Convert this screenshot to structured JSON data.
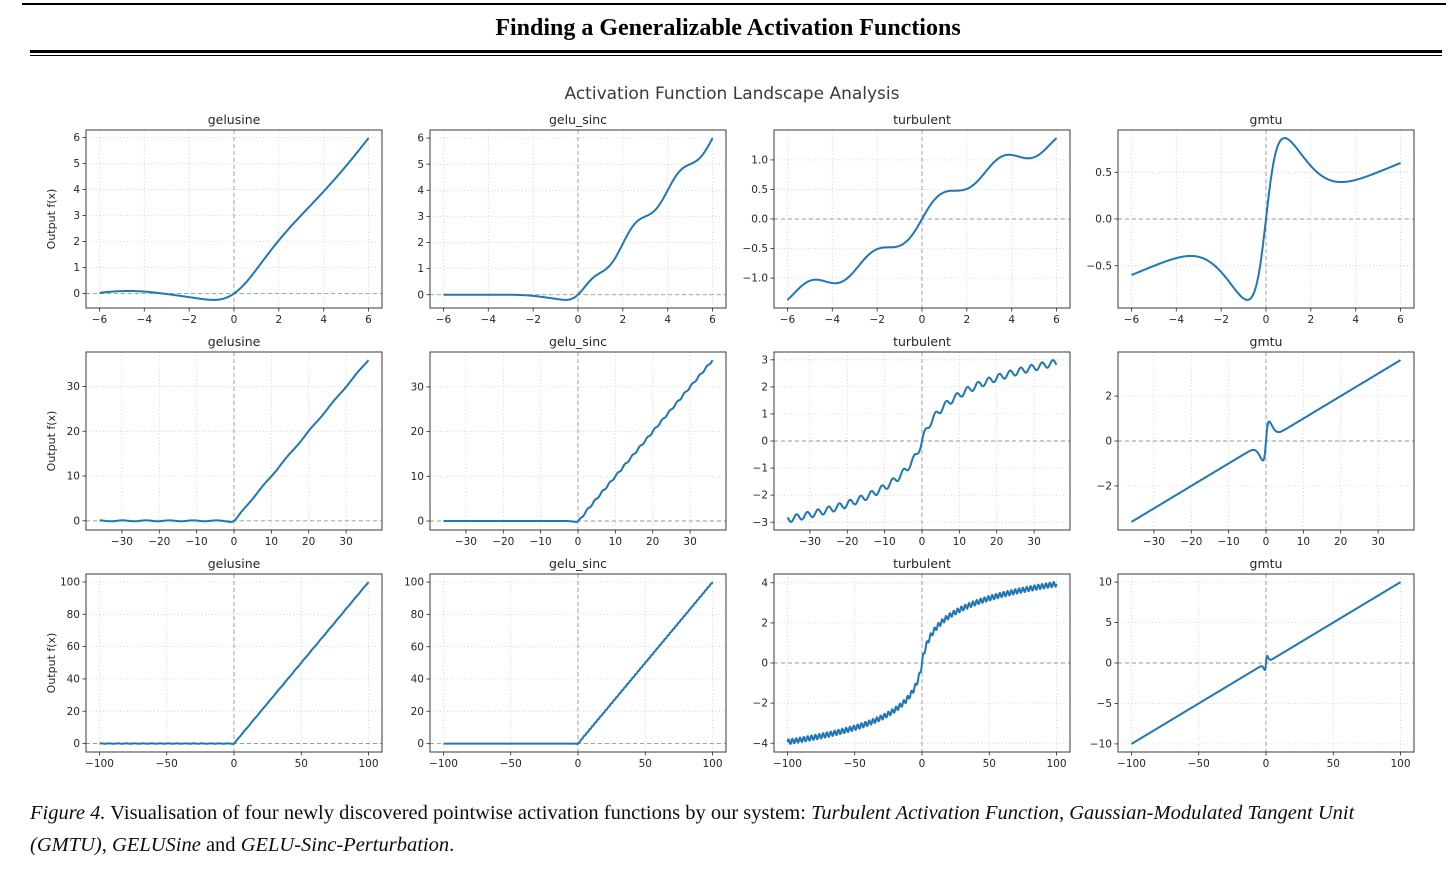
{
  "page": {
    "header_title": "Finding a Generalizable Activation Functions",
    "caption_segments": [
      {
        "text": "Figure 4.",
        "italic": true
      },
      {
        "text": " Visualisation of four newly discovered pointwise activation functions by our system: ",
        "italic": false
      },
      {
        "text": "Turbulent Activation Function",
        "italic": true
      },
      {
        "text": ", ",
        "italic": false
      },
      {
        "text": "Gaussian-Modulated Tangent Unit (GMTU)",
        "italic": true
      },
      {
        "text": ", ",
        "italic": false
      },
      {
        "text": "GELUSine",
        "italic": true
      },
      {
        "text": " and ",
        "italic": false
      },
      {
        "text": "GELU-Sinc-Perturbation",
        "italic": true
      },
      {
        "text": ".",
        "italic": false
      }
    ]
  },
  "chart_data": {
    "type": "line",
    "suptitle": "Activation Function Landscape Analysis",
    "ylabel": "Output f(x)",
    "line_color": "#1f77b4",
    "grid": "dotted",
    "zero_lines": "dashed",
    "legend": "none",
    "columns": [
      "gelusine",
      "gelu_sinc",
      "turbulent",
      "gmtu"
    ],
    "functions": {
      "gelusine": "gelu(x)+0.1*sin(x)",
      "gelu_sinc": "gelu(x)+0.2*sin(3.1416*x)*phi(1.5*x)",
      "turbulent": "sign(x)*1.06*log(1+0.4*abs(x))+0.12*sin(2.2*x)",
      "gmtu": "0.1*x+tanh(2*x)*exp(-x*x/4)"
    },
    "rows": [
      {
        "xmin": -6,
        "xmax": 6,
        "samples": 500,
        "xticks": [
          -6,
          -4,
          -2,
          0,
          2,
          4,
          6
        ],
        "xtick_labels": [
          "−6",
          "−4",
          "−2",
          "0",
          "2",
          "4",
          "6"
        ]
      },
      {
        "xmin": -36,
        "xmax": 36,
        "samples": 900,
        "xticks": [
          -30,
          -20,
          -10,
          0,
          10,
          20,
          30
        ],
        "xtick_labels": [
          "−30",
          "−20",
          "−10",
          "0",
          "10",
          "20",
          "30"
        ]
      },
      {
        "xmin": -100,
        "xmax": 100,
        "samples": 1700,
        "xticks": [
          -100,
          -50,
          0,
          50,
          100
        ],
        "xtick_labels": [
          "−100",
          "−50",
          "0",
          "50",
          "100"
        ]
      }
    ],
    "subplots": [
      {
        "row": 0,
        "col": 0,
        "title": "gelusine",
        "func": "gelusine",
        "yticks": [
          0,
          1,
          2,
          3,
          4,
          5,
          6
        ],
        "ytick_labels": [
          "0",
          "1",
          "2",
          "3",
          "4",
          "5",
          "6"
        ]
      },
      {
        "row": 0,
        "col": 1,
        "title": "gelu_sinc",
        "func": "gelu_sinc",
        "yticks": [
          0,
          1,
          2,
          3,
          4,
          5,
          6
        ],
        "ytick_labels": [
          "0",
          "1",
          "2",
          "3",
          "4",
          "5",
          "6"
        ]
      },
      {
        "row": 0,
        "col": 2,
        "title": "turbulent",
        "func": "turbulent",
        "yticks": [
          -1,
          -0.5,
          0,
          0.5,
          1
        ],
        "ytick_labels": [
          "−1.0",
          "−0.5",
          "0.0",
          "0.5",
          "1.0"
        ]
      },
      {
        "row": 0,
        "col": 3,
        "title": "gmtu",
        "func": "gmtu",
        "yticks": [
          -0.5,
          0,
          0.5
        ],
        "ytick_labels": [
          "−0.5",
          "0.0",
          "0.5"
        ]
      },
      {
        "row": 1,
        "col": 0,
        "title": "gelusine",
        "func": "gelusine",
        "yticks": [
          0,
          10,
          20,
          30
        ],
        "ytick_labels": [
          "0",
          "10",
          "20",
          "30"
        ]
      },
      {
        "row": 1,
        "col": 1,
        "title": "gelu_sinc",
        "func": "gelu_sinc",
        "yticks": [
          0,
          10,
          20,
          30
        ],
        "ytick_labels": [
          "0",
          "10",
          "20",
          "30"
        ]
      },
      {
        "row": 1,
        "col": 2,
        "title": "turbulent",
        "func": "turbulent",
        "yticks": [
          -3,
          -2,
          -1,
          0,
          1,
          2,
          3
        ],
        "ytick_labels": [
          "−3",
          "−2",
          "−1",
          "0",
          "1",
          "2",
          "3"
        ]
      },
      {
        "row": 1,
        "col": 3,
        "title": "gmtu",
        "func": "gmtu",
        "yticks": [
          -2,
          0,
          2
        ],
        "ytick_labels": [
          "−2",
          "0",
          "2"
        ]
      },
      {
        "row": 2,
        "col": 0,
        "title": "gelusine",
        "func": "gelusine",
        "yticks": [
          0,
          20,
          40,
          60,
          80,
          100
        ],
        "ytick_labels": [
          "0",
          "20",
          "40",
          "60",
          "80",
          "100"
        ]
      },
      {
        "row": 2,
        "col": 1,
        "title": "gelu_sinc",
        "func": "gelu_sinc",
        "yticks": [
          0,
          20,
          40,
          60,
          80,
          100
        ],
        "ytick_labels": [
          "0",
          "20",
          "40",
          "60",
          "80",
          "100"
        ]
      },
      {
        "row": 2,
        "col": 2,
        "title": "turbulent",
        "func": "turbulent",
        "yticks": [
          -4,
          -2,
          0,
          2,
          4
        ],
        "ytick_labels": [
          "−4",
          "−2",
          "0",
          "2",
          "4"
        ]
      },
      {
        "row": 2,
        "col": 3,
        "title": "gmtu",
        "func": "gmtu",
        "yticks": [
          -10,
          -5,
          0,
          5,
          10
        ],
        "ytick_labels": [
          "−10",
          "−5",
          "0",
          "5",
          "10"
        ]
      }
    ]
  }
}
